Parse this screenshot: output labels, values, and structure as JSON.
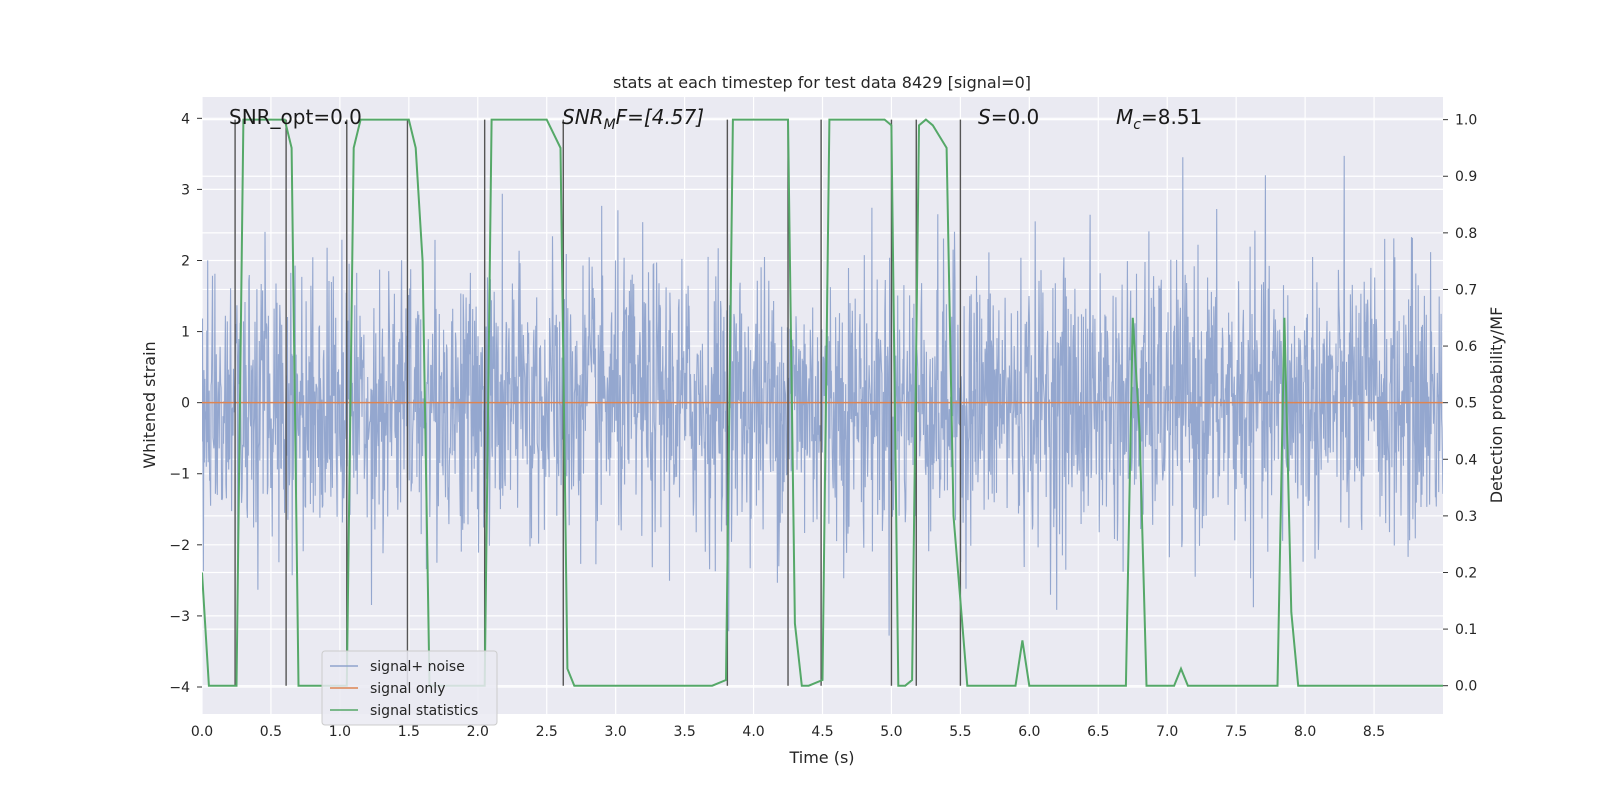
{
  "chart_data": {
    "type": "line",
    "title": "stats at each timestep for test data 8429 [signal=0]",
    "xlabel": "Time (s)",
    "ylabel_left": "Whitened strain",
    "ylabel_right": "Detection probability/MF",
    "xlim": [
      0.0,
      9.0
    ],
    "ylim_left": [
      -4.38,
      4.3
    ],
    "ylim_right": [
      -0.05,
      1.04
    ],
    "x_ticks": [
      "0.0",
      "0.5",
      "1.0",
      "1.5",
      "2.0",
      "2.5",
      "3.0",
      "3.5",
      "4.0",
      "4.5",
      "5.0",
      "5.5",
      "6.0",
      "6.5",
      "7.0",
      "7.5",
      "8.0",
      "8.5"
    ],
    "y_ticks_left": [
      "4",
      "3",
      "2",
      "1",
      "0",
      "−1",
      "−2",
      "−3",
      "−4"
    ],
    "y_ticks_right": [
      "1.0",
      "0.9",
      "0.8",
      "0.7",
      "0.6",
      "0.5",
      "0.4",
      "0.3",
      "0.2",
      "0.1",
      "0.0"
    ],
    "annotations": {
      "snr_opt": "SNR_opt=0.0",
      "snr_mf_main": "SNR",
      "snr_mf_sub": "M",
      "snr_mf_rest": "F=[4.57]",
      "s_main": "S",
      "s_rest": "=0.0",
      "mc_main": "M",
      "mc_sub": "c",
      "mc_rest": "=8.51"
    },
    "legend": {
      "placement": "lower-left",
      "entries": [
        "signal+ noise",
        "signal only",
        "signal statistics"
      ]
    },
    "colors": {
      "noise": "#8fa3cc",
      "signal_only": "#dd8452",
      "statistics": "#55a868",
      "vlines": "#555555",
      "background": "#eaeaf2",
      "grid": "#ffffff"
    },
    "series": [
      {
        "name": "signal+ noise",
        "description": "whitened strain, approx. Gaussian noise, peaks up to about +/-3.5",
        "envelope_typical": 1.55
      },
      {
        "name": "signal only",
        "values_constant": 0.0
      },
      {
        "name": "signal statistics",
        "x": [
          0.0,
          0.05,
          0.1,
          0.15,
          0.25,
          0.3,
          0.55,
          0.6,
          0.65,
          0.7,
          0.75,
          1.0,
          1.05,
          1.1,
          1.15,
          1.2,
          1.5,
          1.55,
          1.6,
          1.65,
          1.7,
          2.0,
          2.05,
          2.1,
          2.15,
          2.5,
          2.6,
          2.65,
          2.7,
          2.75,
          3.7,
          3.8,
          3.85,
          3.9,
          4.25,
          4.3,
          4.35,
          4.4,
          4.5,
          4.55,
          4.6,
          4.95,
          5.0,
          5.05,
          5.1,
          5.15,
          5.2,
          5.25,
          5.3,
          5.4,
          5.45,
          5.5,
          5.55,
          5.6,
          5.7,
          5.9,
          5.95,
          6.0,
          6.05,
          6.7,
          6.75,
          6.8,
          6.85,
          6.9,
          7.05,
          7.1,
          7.15,
          7.2,
          7.3,
          7.4,
          7.5,
          7.8,
          7.85,
          7.9,
          7.95,
          8.0,
          8.5,
          9.0
        ],
        "values": [
          0.2,
          0.0,
          0.0,
          0.0,
          0.0,
          1.0,
          1.0,
          1.0,
          0.95,
          0.0,
          0.0,
          0.0,
          0.0,
          0.95,
          1.0,
          1.0,
          1.0,
          0.95,
          0.75,
          0.0,
          0.0,
          0.0,
          0.0,
          1.0,
          1.0,
          1.0,
          0.95,
          0.03,
          0.0,
          0.0,
          0.0,
          0.01,
          1.0,
          1.0,
          1.0,
          0.11,
          0.0,
          0.0,
          0.01,
          1.0,
          1.0,
          1.0,
          0.99,
          0.0,
          0.0,
          0.01,
          0.99,
          1.0,
          0.99,
          0.95,
          0.3,
          0.15,
          0.0,
          0.0,
          0.0,
          0.0,
          0.08,
          0.0,
          0.0,
          0.0,
          0.65,
          0.45,
          0.0,
          0.0,
          0.0,
          0.03,
          0.0,
          0.0,
          0.0,
          0.0,
          0.0,
          0.0,
          0.65,
          0.13,
          0.0,
          0.0,
          0.0,
          0.0
        ]
      }
    ],
    "vertical_lines_x": [
      0.24,
      0.61,
      1.05,
      1.49,
      2.05,
      2.62,
      3.81,
      4.25,
      4.49,
      5.0,
      5.18,
      5.5
    ]
  }
}
